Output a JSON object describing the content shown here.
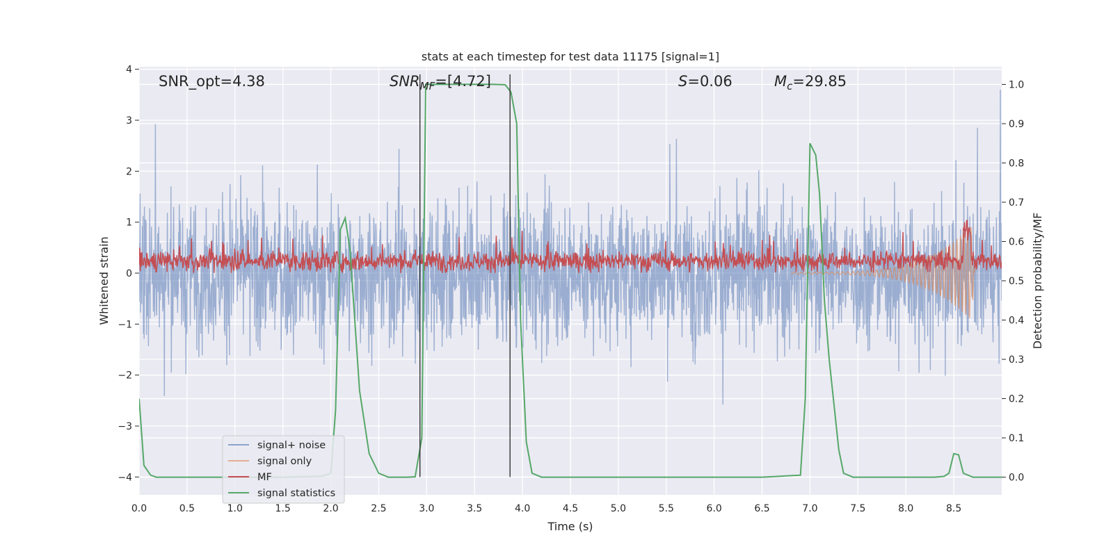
{
  "chart_data": {
    "type": "line",
    "title": "stats at each timestep for test data 11175 [signal=1]",
    "xlabel": "Time (s)",
    "ylabel_left": "Whitened strain",
    "ylabel_right": "Detection probability/MF",
    "xlim": [
      0.0,
      9.0
    ],
    "ylim_left": [
      -4.35,
      4.05
    ],
    "ylim_right": [
      -0.045,
      1.045
    ],
    "x_ticks": [
      "0.0",
      "0.5",
      "1.0",
      "1.5",
      "2.0",
      "2.5",
      "3.0",
      "3.5",
      "4.0",
      "4.5",
      "5.0",
      "5.5",
      "6.0",
      "6.5",
      "7.0",
      "7.5",
      "8.0",
      "8.5"
    ],
    "y_left_ticks": [
      "−4",
      "−3",
      "−2",
      "−1",
      "0",
      "1",
      "2",
      "3",
      "4"
    ],
    "y_right_ticks": [
      "0.0",
      "0.1",
      "0.2",
      "0.3",
      "0.4",
      "0.5",
      "0.6",
      "0.7",
      "0.8",
      "0.9",
      "1.0"
    ],
    "grid": true,
    "legend_placement": "lower-left",
    "annotations": {
      "snr_opt": "SNR_opt=4.38",
      "snr_mf_base": "SNR",
      "snr_mf_sub": "MF",
      "snr_mf_value": "=[4.72]",
      "s_sym": "S",
      "s_value": "=0.06",
      "mc_sym": "M",
      "mc_sub": "c",
      "mc_value": "=29.85"
    },
    "vertical_lines": [
      {
        "x": 2.93,
        "y_top": 3.9
      },
      {
        "x": 3.87,
        "y_top": 3.9
      }
    ],
    "series": [
      {
        "name": "signal+ noise",
        "axis": "left",
        "color": "#4c72b0",
        "description": "noisy whitened strain, approx. uniform noise band within [-3.4, 3.6]"
      },
      {
        "name": "signal only",
        "axis": "left",
        "color": "#dd8452",
        "x": [
          7.0,
          7.5,
          8.0,
          8.2,
          8.4,
          8.5,
          8.55,
          8.6,
          8.62,
          8.64,
          8.66,
          8.68,
          8.7
        ],
        "y": [
          0.03,
          0.05,
          0.1,
          0.13,
          0.2,
          0.3,
          0.4,
          0.55,
          0.7,
          0.85,
          1.05,
          0.5,
          0.1
        ]
      },
      {
        "name": "MF",
        "axis": "right",
        "color": "#c44e52",
        "description": "matched-filter output fluctuating around 0.55 on the right axis"
      },
      {
        "name": "signal statistics",
        "axis": "right",
        "color": "#55a868",
        "x": [
          0.0,
          0.05,
          0.12,
          0.18,
          0.3,
          0.5,
          1.0,
          1.5,
          1.9,
          2.0,
          2.05,
          2.1,
          2.15,
          2.2,
          2.3,
          2.4,
          2.5,
          2.55,
          2.6,
          2.7,
          2.8,
          2.88,
          2.95,
          2.99,
          3.02,
          3.1,
          3.3,
          3.5,
          3.7,
          3.82,
          3.88,
          3.94,
          3.98,
          4.04,
          4.1,
          4.2,
          4.5,
          5.0,
          5.5,
          6.0,
          6.5,
          6.9,
          6.95,
          7.0,
          7.02,
          7.06,
          7.1,
          7.15,
          7.2,
          7.3,
          7.35,
          7.45,
          7.5,
          7.7,
          8.0,
          8.3,
          8.4,
          8.45,
          8.5,
          8.55,
          8.6,
          8.7,
          9.0
        ],
        "y": [
          0.2,
          0.03,
          0.005,
          0.0,
          0.0,
          0.0,
          0.0,
          0.0,
          0.002,
          0.01,
          0.17,
          0.63,
          0.66,
          0.58,
          0.22,
          0.06,
          0.01,
          0.005,
          0.0,
          0.0,
          0.0,
          0.001,
          0.1,
          1.0,
          1.0,
          1.0,
          1.0,
          1.0,
          1.0,
          0.999,
          0.98,
          0.9,
          0.4,
          0.09,
          0.01,
          0.0,
          0.0,
          0.0,
          0.0,
          0.0,
          0.0,
          0.005,
          0.2,
          0.85,
          0.84,
          0.82,
          0.72,
          0.45,
          0.3,
          0.07,
          0.01,
          0.0,
          0.0,
          0.0,
          0.0,
          0.0,
          0.002,
          0.01,
          0.06,
          0.057,
          0.01,
          0.0,
          0.0
        ]
      }
    ]
  }
}
